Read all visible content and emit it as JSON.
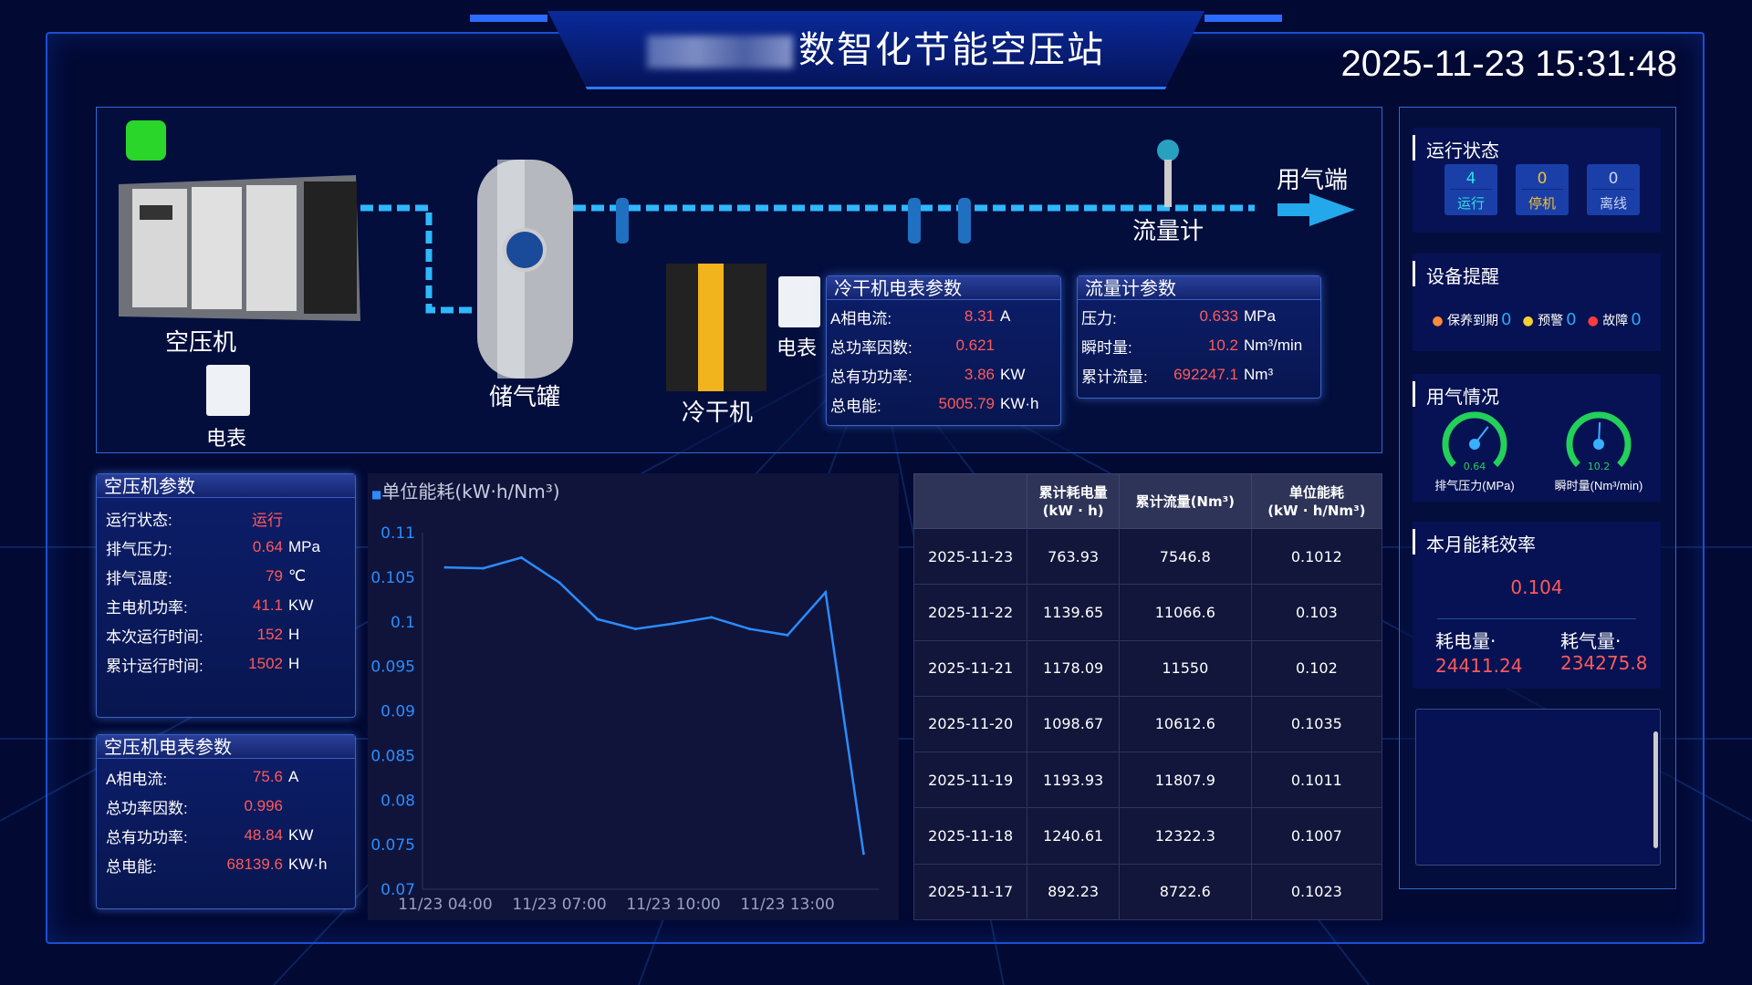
{
  "header": {
    "title": "数智化节能空压站",
    "datetime": "2025-11-23 15:31:48"
  },
  "diagram": {
    "compressor_label": "空压机",
    "meter_label": "电表",
    "tank_label": "储气罐",
    "dryer_label": "冷干机",
    "dryer_meter_label": "电表",
    "flowmeter_label": "流量计",
    "endpoint_label": "用气端",
    "dryer_params": {
      "title": "冷干机电表参数",
      "rows": [
        {
          "k": "A相电流:",
          "v": "8.31",
          "u": "A"
        },
        {
          "k": "总功率因数:",
          "v": "0.621",
          "u": ""
        },
        {
          "k": "总有功功率:",
          "v": "3.86",
          "u": "KW"
        },
        {
          "k": "总电能:",
          "v": "5005.79",
          "u": "KW·h"
        }
      ]
    },
    "flow_params": {
      "title": "流量计参数",
      "rows": [
        {
          "k": "压力:",
          "v": "0.633",
          "u": "MPa"
        },
        {
          "k": "瞬时量:",
          "v": "10.2",
          "u": "Nm³/min"
        },
        {
          "k": "累计流量:",
          "v": "692247.1",
          "u": "Nm³"
        }
      ]
    }
  },
  "compressor_params": {
    "title": "空压机参数",
    "rows": [
      {
        "k": "运行状态:",
        "v": "运行",
        "u": ""
      },
      {
        "k": "排气压力:",
        "v": "0.64",
        "u": "MPa"
      },
      {
        "k": "排气温度:",
        "v": "79",
        "u": "℃"
      },
      {
        "k": "主电机功率:",
        "v": "41.1",
        "u": "KW"
      },
      {
        "k": "本次运行时间:",
        "v": "152",
        "u": "H"
      },
      {
        "k": "累计运行时间:",
        "v": "1502",
        "u": "H"
      }
    ]
  },
  "compressor_meter": {
    "title": "空压机电表参数",
    "rows": [
      {
        "k": "A相电流:",
        "v": "75.6",
        "u": "A"
      },
      {
        "k": "总功率因数:",
        "v": "0.996",
        "u": ""
      },
      {
        "k": "总有功功率:",
        "v": "48.84",
        "u": "KW"
      },
      {
        "k": "总电能:",
        "v": "68139.6",
        "u": "KW·h"
      }
    ]
  },
  "chart_data": {
    "type": "line",
    "legend": "单位能耗(kW·h/Nm³)",
    "color": "#2a8cff",
    "x": [
      "11/23 04:00",
      "11/23 05:00",
      "11/23 06:00",
      "11/23 07:00",
      "11/23 08:00",
      "11/23 09:00",
      "11/23 10:00",
      "11/23 11:00",
      "11/23 12:00",
      "11/23 13:00",
      "11/23 14:00",
      "11/23 15:00"
    ],
    "xticks": [
      "11/23 04:00",
      "11/23 07:00",
      "11/23 10:00",
      "11/23 13:00"
    ],
    "values": [
      0.1061,
      0.106,
      0.1072,
      0.1044,
      0.1003,
      0.0992,
      0.0998,
      0.1005,
      0.0992,
      0.0985,
      0.1033,
      0.074
    ],
    "ylim": [
      0.07,
      0.11
    ],
    "yticks": [
      "0.07",
      "0.075",
      "0.08",
      "0.085",
      "0.09",
      "0.095",
      "0.1",
      "0.105",
      "0.11"
    ],
    "grid": false,
    "legend_position": "top-left"
  },
  "table": {
    "headers": [
      "",
      "累计耗电量\n(kW · h)",
      "累计流量(Nm³)",
      "单位能耗\n(kW · h/Nm³)"
    ],
    "rows": [
      [
        "2025-11-23",
        "763.93",
        "7546.8",
        "0.1012"
      ],
      [
        "2025-11-22",
        "1139.65",
        "11066.6",
        "0.103"
      ],
      [
        "2025-11-21",
        "1178.09",
        "11550",
        "0.102"
      ],
      [
        "2025-11-20",
        "1098.67",
        "10612.6",
        "0.1035"
      ],
      [
        "2025-11-19",
        "1193.93",
        "11807.9",
        "0.1011"
      ],
      [
        "2025-11-18",
        "1240.61",
        "12322.3",
        "0.1007"
      ],
      [
        "2025-11-17",
        "892.23",
        "8722.6",
        "0.1023"
      ]
    ]
  },
  "right": {
    "status": {
      "title": "运行状态",
      "items": [
        {
          "n": "4",
          "l": "运行",
          "color": "#2de0e0"
        },
        {
          "n": "0",
          "l": "停机",
          "color": "#f0c030"
        },
        {
          "n": "0",
          "l": "离线",
          "color": "#c8d4f0"
        }
      ]
    },
    "alerts": {
      "title": "设备提醒",
      "items": [
        {
          "l": "保养到期",
          "n": "0",
          "color": "#ff8a3c"
        },
        {
          "l": "预警",
          "n": "0",
          "color": "#f5d030"
        },
        {
          "l": "故障",
          "n": "0",
          "color": "#ff3c3c"
        }
      ]
    },
    "usage": {
      "title": "用气情况",
      "gauges": [
        {
          "value": "0.64",
          "label": "排气压力(MPa)",
          "fraction": 0.64
        },
        {
          "value": "10.2",
          "label": "瞬时量(Nm³/min)",
          "fraction": 0.51
        }
      ]
    },
    "efficiency": {
      "title": "本月能耗效率",
      "value": "0.104",
      "power_label": "耗电量·",
      "power": "24411.24",
      "air_label": "耗气量·",
      "air": "234275.8"
    }
  }
}
